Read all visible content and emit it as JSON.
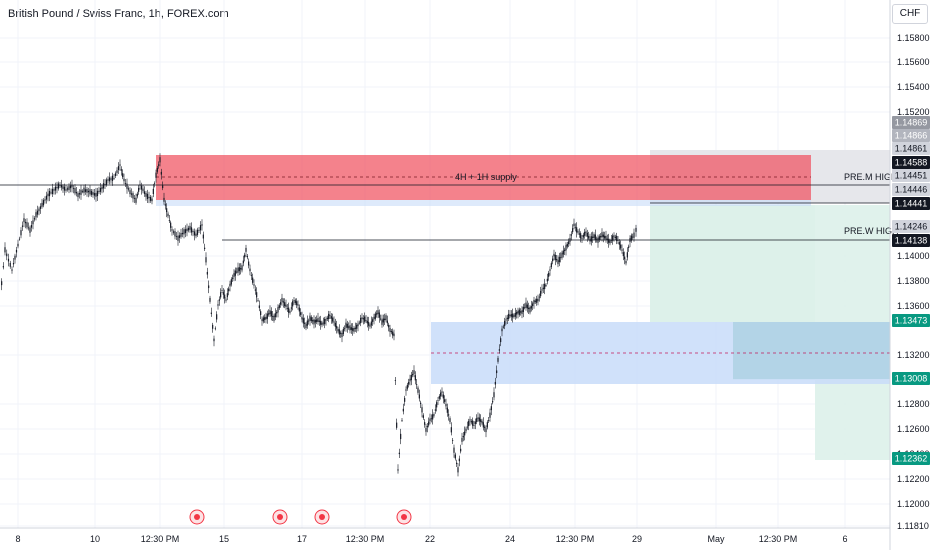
{
  "header": {
    "title": "British Pound / Swiss Franc, 1h, FOREX.com",
    "currency": "CHF"
  },
  "price_axis": {
    "ticks": [
      "1.15800",
      "1.15600",
      "1.15400",
      "1.15200",
      "1.14000",
      "1.13800",
      "1.13600",
      "1.13200",
      "1.12800",
      "1.12600",
      "1.12400",
      "1.12200",
      "1.12000",
      "1.11810"
    ]
  },
  "time_axis": {
    "ticks": [
      "8",
      "10",
      "12:30 PM",
      "15",
      "17",
      "12:30 PM",
      "22",
      "24",
      "12:30 PM",
      "29",
      "May",
      "12:30 PM",
      "6"
    ]
  },
  "price_tags": [
    {
      "text": "1.14869",
      "bg": "#9598a1",
      "fg": "#ffffff"
    },
    {
      "text": "1.14866",
      "bg": "#b2b5be",
      "fg": "#ffffff"
    },
    {
      "text": "1.14861",
      "bg": "#d1d4dc",
      "fg": "#131722"
    },
    {
      "text": "1.14588",
      "bg": "#131722",
      "fg": "#ffffff"
    },
    {
      "text": "1.14451",
      "bg": "#d1d4dc",
      "fg": "#131722"
    },
    {
      "text": "1.14446",
      "bg": "#d1d4dc",
      "fg": "#131722"
    },
    {
      "text": "1.14441",
      "bg": "#131722",
      "fg": "#ffffff"
    },
    {
      "text": "1.14246",
      "bg": "#d1d4dc",
      "fg": "#131722"
    },
    {
      "text": "1.14138",
      "bg": "#131722",
      "fg": "#ffffff"
    },
    {
      "text": "1.13473",
      "bg": "#089981",
      "fg": "#ffffff"
    },
    {
      "text": "1.13008",
      "bg": "#089981",
      "fg": "#ffffff"
    },
    {
      "text": "1.12362",
      "bg": "#089981",
      "fg": "#ffffff"
    }
  ],
  "annotations": {
    "supply": "4H + 1H supply",
    "pre_m_high": "PRE.M HIGH",
    "pre_w_high": "PRE.W HIGH"
  },
  "colors": {
    "supply_zone": "#f0525f",
    "demand_zone": "#c8dcf9",
    "target_zone": "#ddf1ea",
    "stop_zone": "#e8e8ec",
    "candle": "#131722",
    "event_marker": "#f23645"
  },
  "events": [
    "event-marker-1",
    "event-marker-2",
    "event-marker-3",
    "event-marker-4"
  ]
}
